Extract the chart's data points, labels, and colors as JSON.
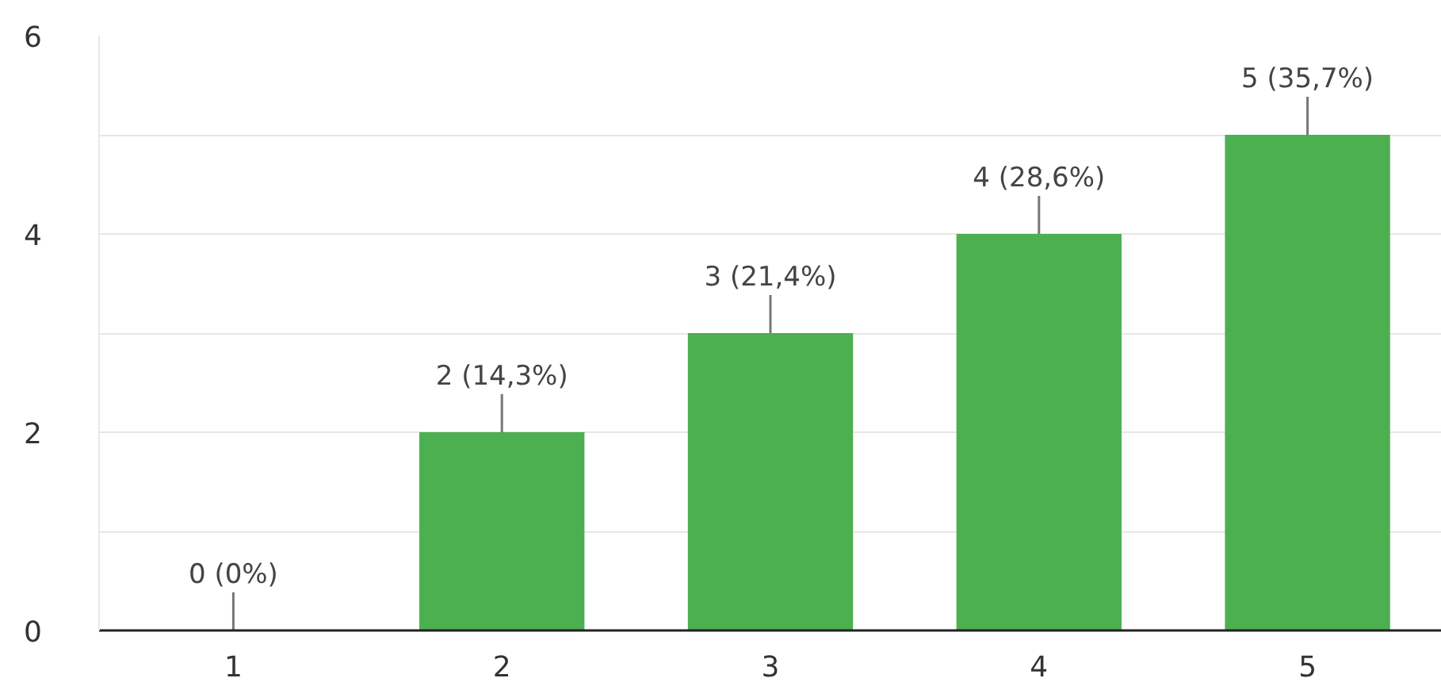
{
  "chart_data": {
    "type": "bar",
    "categories": [
      "1",
      "2",
      "3",
      "4",
      "5"
    ],
    "values": [
      0,
      2,
      3,
      4,
      5
    ],
    "color": "#4caf50",
    "value_labels": [
      "0 (0%)",
      "2 (14,3%)",
      "3 (21,4%)",
      "4 (28,6%)",
      "5 (35,7%)"
    ],
    "ylim": [
      0,
      6
    ],
    "yticks": [
      0,
      {
        "value": 1,
        "label": null
      },
      2,
      {
        "value": 3,
        "label": null
      },
      4,
      {
        "value": 5,
        "label": null
      },
      6
    ],
    "grid": "y"
  }
}
